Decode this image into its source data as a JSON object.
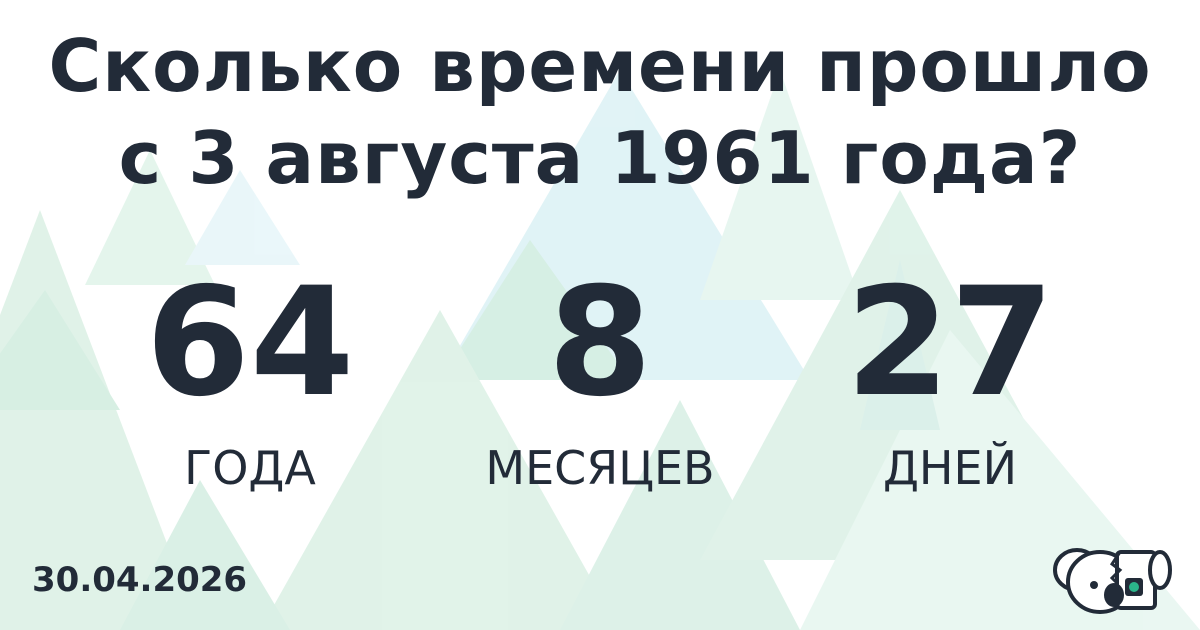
{
  "title_line1": "Сколько времени прошло",
  "title_line2": "с 3 августа 1961 года?",
  "years": {
    "value": "64",
    "label": "ГОДА"
  },
  "months": {
    "value": "8",
    "label": "МЕСЯЦЕВ"
  },
  "days": {
    "value": "27",
    "label": "ДНЕЙ"
  },
  "date": "30.04.2026",
  "logo": "koala-robot-logo",
  "colors": {
    "text": "#222b38",
    "accent": "#2bb58a"
  }
}
